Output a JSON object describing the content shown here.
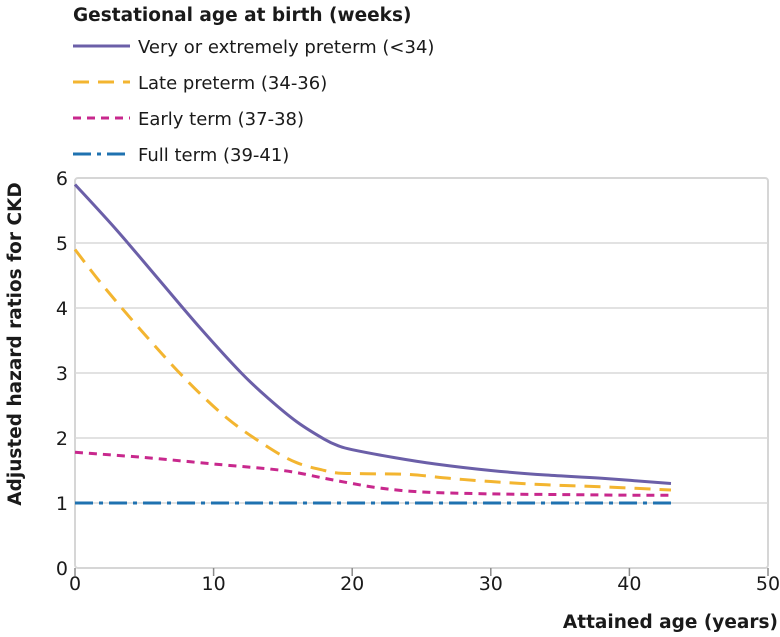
{
  "chart_data": {
    "type": "line",
    "legend": {
      "title": "Gestational age at birth (weeks)",
      "placement": "top-left"
    },
    "xlabel": "Attained age (years)",
    "ylabel": "Adjusted hazard ratios for CKD",
    "xlim": [
      0,
      50
    ],
    "ylim": [
      0,
      6
    ],
    "xticks": [
      "0",
      "10",
      "20",
      "30",
      "40",
      "50"
    ],
    "yticks": [
      "0",
      "1",
      "2",
      "3",
      "4",
      "5",
      "6"
    ],
    "grid": {
      "horizontal": true,
      "vertical": false
    },
    "series": [
      {
        "name": "Very or extremely preterm (<34)",
        "color": "#6b5fa8",
        "style": "solid",
        "x": [
          0,
          3,
          6,
          9,
          12,
          14,
          16,
          18,
          19,
          20,
          23,
          26,
          30,
          34,
          38,
          43
        ],
        "y": [
          5.9,
          5.2,
          4.45,
          3.7,
          3.0,
          2.6,
          2.25,
          1.98,
          1.88,
          1.82,
          1.7,
          1.6,
          1.5,
          1.43,
          1.38,
          1.3
        ]
      },
      {
        "name": "Late preterm (34-36)",
        "color": "#f3b530",
        "style": "dashed",
        "x": [
          0,
          2,
          5,
          8,
          11,
          14,
          16,
          18,
          19,
          21,
          24,
          27,
          30,
          34,
          38,
          43
        ],
        "y": [
          4.9,
          4.35,
          3.6,
          2.9,
          2.3,
          1.85,
          1.62,
          1.5,
          1.46,
          1.45,
          1.44,
          1.38,
          1.33,
          1.28,
          1.25,
          1.2
        ]
      },
      {
        "name": "Early term (37-38)",
        "color": "#c8288d",
        "style": "short-dash",
        "x": [
          0,
          5,
          10,
          15,
          18,
          20,
          22,
          25,
          30,
          35,
          40,
          43
        ],
        "y": [
          1.78,
          1.7,
          1.6,
          1.5,
          1.38,
          1.3,
          1.23,
          1.17,
          1.14,
          1.13,
          1.12,
          1.12
        ]
      },
      {
        "name": "Full term (39-41)",
        "color": "#1f72b0",
        "style": "dash-dot",
        "x": [
          0,
          43
        ],
        "y": [
          1.0,
          1.0
        ]
      }
    ]
  }
}
